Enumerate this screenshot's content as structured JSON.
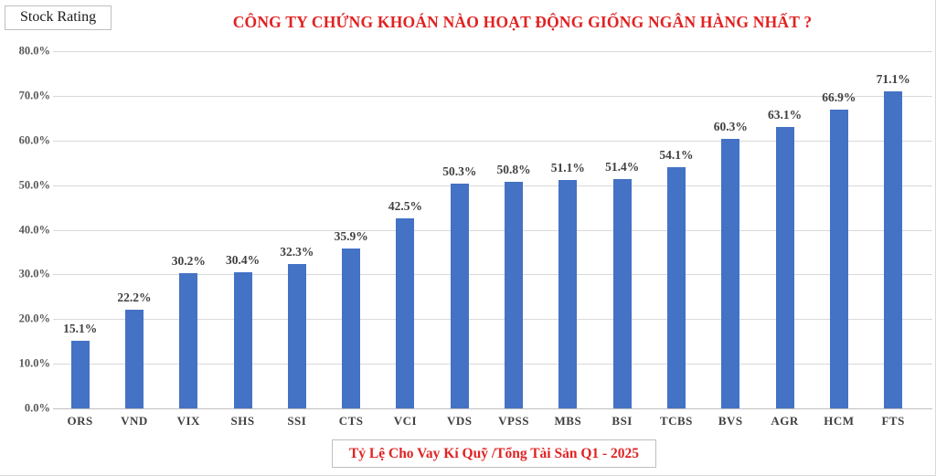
{
  "stock_rating": {
    "label": "Stock Rating"
  },
  "title": "CÔNG TY CHỨNG KHOÁN NÀO HOẠT ĐỘNG GIỐNG NGÂN HÀNG NHẤT ?",
  "footer": {
    "label": "Tỷ Lệ Cho Vay Kí Quỹ /Tổng Tài Sản Q1 - 2025"
  },
  "colors": {
    "bar": "#4472C4",
    "title_red": "#E02222",
    "footer_red": "#E02222",
    "gridline": "#D9D9D9",
    "axis_text": "#595959",
    "label_text": "#404040"
  },
  "chart_data": {
    "type": "bar",
    "title": "CÔNG TY CHỨNG KHOÁN NÀO HOẠT ĐỘNG GIỐNG NGÂN HÀNG NHẤT ?",
    "xlabel": "",
    "ylabel": "",
    "ylim": [
      0,
      80
    ],
    "grid": true,
    "legend": "none",
    "y_ticks": [
      "80.0%",
      "70.0%",
      "60.0%",
      "50.0%",
      "40.0%",
      "30.0%",
      "20.0%",
      "10.0%",
      "0.0%"
    ],
    "y_tick_values": [
      80,
      70,
      60,
      50,
      40,
      30,
      20,
      10,
      0
    ],
    "categories": [
      "ORS",
      "VND",
      "VIX",
      "SHS",
      "SSI",
      "CTS",
      "VCI",
      "VDS",
      "VPSS",
      "MBS",
      "BSI",
      "TCBS",
      "BVS",
      "AGR",
      "HCM",
      "FTS"
    ],
    "values": [
      15.1,
      22.2,
      30.2,
      30.4,
      32.3,
      35.9,
      42.5,
      50.3,
      50.8,
      51.1,
      51.4,
      54.1,
      60.3,
      63.1,
      66.9,
      71.1
    ],
    "value_labels": [
      "15.1%",
      "22.2%",
      "30.2%",
      "30.4%",
      "32.3%",
      "35.9%",
      "42.5%",
      "50.3%",
      "50.8%",
      "51.1%",
      "51.4%",
      "54.1%",
      "60.3%",
      "63.1%",
      "66.9%",
      "71.1%"
    ]
  }
}
